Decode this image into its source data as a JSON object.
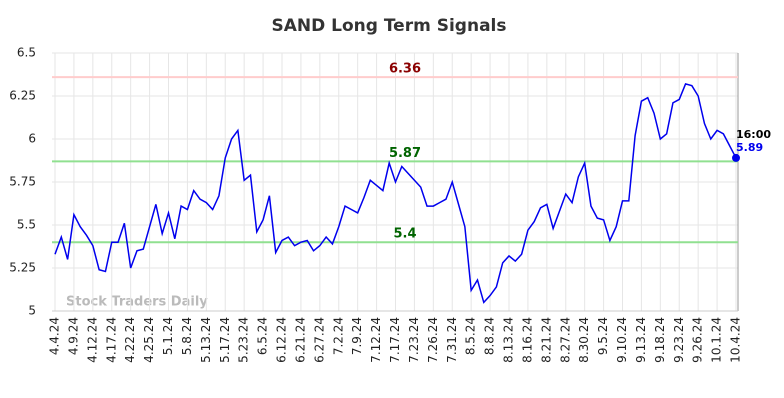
{
  "chart_data": {
    "type": "line",
    "title": "SAND Long Term Signals",
    "categories": [
      "4.4.24",
      null,
      null,
      "4.9.24",
      null,
      null,
      "4.12.24",
      null,
      null,
      "4.17.24",
      null,
      null,
      "4.22.24",
      null,
      null,
      "4.25.24",
      null,
      null,
      "5.1.24",
      null,
      null,
      "5.8.24",
      null,
      null,
      "5.13.24",
      null,
      null,
      "5.17.24",
      null,
      null,
      "5.23.24",
      null,
      null,
      "6.5.24",
      null,
      null,
      "6.12.24",
      null,
      null,
      "6.21.24",
      null,
      null,
      "6.27.24",
      null,
      null,
      "7.2.24",
      null,
      null,
      "7.9.24",
      null,
      null,
      "7.12.24",
      null,
      null,
      "7.17.24",
      null,
      null,
      "7.23.24",
      null,
      null,
      "7.26.24",
      null,
      null,
      "7.31.24",
      null,
      null,
      "8.5.24",
      null,
      null,
      "8.8.24",
      null,
      null,
      "8.13.24",
      null,
      null,
      "8.16.24",
      null,
      null,
      "8.21.24",
      null,
      null,
      "8.27.24",
      null,
      null,
      "8.30.24",
      null,
      null,
      "9.5.24",
      null,
      null,
      "9.10.24",
      null,
      null,
      "9.13.24",
      null,
      null,
      "9.18.24",
      null,
      null,
      "9.23.24",
      null,
      null,
      "9.26.24",
      null,
      null,
      "10.1.24",
      null,
      null,
      "10.4.24"
    ],
    "series": [
      {
        "name": "SAND",
        "color": "#0000ee",
        "values": [
          5.33,
          5.43,
          5.3,
          5.56,
          5.49,
          5.44,
          5.38,
          5.24,
          5.23,
          5.4,
          5.4,
          5.51,
          5.25,
          5.35,
          5.36,
          5.49,
          5.62,
          5.45,
          5.57,
          5.42,
          5.61,
          5.59,
          5.7,
          5.65,
          5.63,
          5.59,
          5.67,
          5.89,
          6.0,
          6.05,
          5.76,
          5.79,
          5.46,
          5.53,
          5.67,
          5.34,
          5.41,
          5.43,
          5.38,
          5.4,
          5.41,
          5.35,
          5.38,
          5.43,
          5.39,
          5.49,
          5.61,
          5.59,
          5.57,
          5.66,
          5.76,
          5.73,
          5.7,
          5.86,
          5.75,
          5.84,
          5.8,
          5.76,
          5.72,
          5.61,
          5.61,
          5.63,
          5.65,
          5.75,
          5.62,
          5.49,
          5.12,
          5.18,
          5.05,
          5.09,
          5.14,
          5.28,
          5.32,
          5.29,
          5.33,
          5.47,
          5.52,
          5.6,
          5.62,
          5.48,
          5.58,
          5.68,
          5.63,
          5.78,
          5.86,
          5.61,
          5.54,
          5.53,
          5.41,
          5.49,
          5.64,
          5.64,
          6.02,
          6.22,
          6.24,
          6.15,
          6.0,
          6.03,
          6.21,
          6.23,
          6.32,
          6.31,
          6.25,
          6.09,
          6.0,
          6.05,
          6.03,
          5.96,
          5.89
        ]
      }
    ],
    "ylim": [
      5,
      6.5
    ],
    "yticks": [
      5,
      5.25,
      5.5,
      5.75,
      6,
      6.25,
      6.5
    ],
    "grid": true,
    "hlines": [
      {
        "value": 6.36,
        "color": "#ffcccc",
        "label_color": "#8b0000"
      },
      {
        "value": 5.87,
        "color": "#90e090",
        "label_color": "#006400"
      },
      {
        "value": 5.4,
        "color": "#90e090",
        "label_color": "#006400"
      }
    ],
    "last_label": "16:00",
    "watermark": "Stock Traders Daily"
  }
}
